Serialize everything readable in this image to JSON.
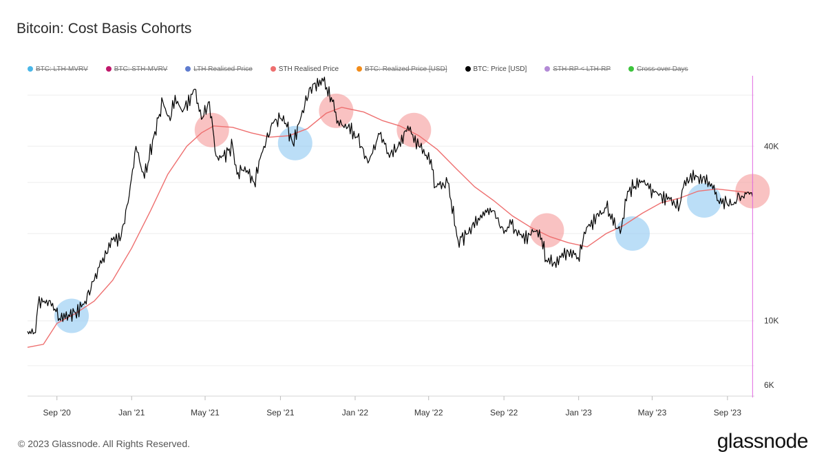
{
  "title": "Bitcoin: Cost Basis Cohorts",
  "legend": [
    {
      "label": "BTC: LTH-MVRV",
      "color": "#4ab7e8",
      "enabled": false
    },
    {
      "label": "BTC: STH-MVRV",
      "color": "#c0186b",
      "enabled": false
    },
    {
      "label": "LTH Realised Price",
      "color": "#5f7ccf",
      "enabled": false
    },
    {
      "label": "STH Realised Price",
      "color": "#ee6f6f",
      "enabled": true
    },
    {
      "label": "BTC: Realized Price [USD]",
      "color": "#f28c1a",
      "enabled": false
    },
    {
      "label": "BTC: Price [USD]",
      "color": "#000000",
      "enabled": true
    },
    {
      "label": "STH-RP < LTH-RP",
      "color": "#b38ad6",
      "enabled": false
    },
    {
      "label": "Cross-over Days",
      "color": "#3cc43c",
      "enabled": false
    }
  ],
  "footer": {
    "copyright": "© 2023 Glassnode. All Rights Reserved.",
    "brand": "glassnode"
  },
  "chart_data": {
    "type": "line",
    "y_scale": "log",
    "ylim": [
      5500,
      70000
    ],
    "xlim": [
      "2020-07-15",
      "2023-10-15"
    ],
    "x_ticks": [
      {
        "date": "2020-09-01",
        "label": "Sep '20"
      },
      {
        "date": "2021-01-01",
        "label": "Jan '21"
      },
      {
        "date": "2021-05-01",
        "label": "May '21"
      },
      {
        "date": "2021-09-01",
        "label": "Sep '21"
      },
      {
        "date": "2022-01-01",
        "label": "Jan '22"
      },
      {
        "date": "2022-05-01",
        "label": "May '22"
      },
      {
        "date": "2022-09-01",
        "label": "Sep '22"
      },
      {
        "date": "2023-01-01",
        "label": "Jan '23"
      },
      {
        "date": "2023-05-01",
        "label": "May '23"
      },
      {
        "date": "2023-09-01",
        "label": "Sep '23"
      }
    ],
    "y_ticks": [
      {
        "value": 6000,
        "label": "6K"
      },
      {
        "value": 10000,
        "label": "10K"
      },
      {
        "value": 40000,
        "label": "40K"
      }
    ],
    "grid": true,
    "colors": {
      "price": "#000000",
      "sth": "#ee6f6f",
      "cursor": "#e066e0",
      "pink_circle": "#f59a9a",
      "blue_circle": "#8ec8f2"
    },
    "series": [
      {
        "name": "BTC: Price [USD]",
        "key": "price",
        "points": [
          [
            "2020-07-15",
            9200
          ],
          [
            "2020-07-28",
            9100
          ],
          [
            "2020-08-01",
            11300
          ],
          [
            "2020-08-15",
            11800
          ],
          [
            "2020-08-25",
            11500
          ],
          [
            "2020-09-05",
            10200
          ],
          [
            "2020-09-20",
            10500
          ],
          [
            "2020-10-01",
            10700
          ],
          [
            "2020-10-15",
            11400
          ],
          [
            "2020-11-01",
            13800
          ],
          [
            "2020-11-15",
            16500
          ],
          [
            "2020-12-01",
            19000
          ],
          [
            "2020-12-15",
            19600
          ],
          [
            "2020-12-28",
            27000
          ],
          [
            "2021-01-08",
            40000
          ],
          [
            "2021-01-22",
            31000
          ],
          [
            "2021-02-08",
            45000
          ],
          [
            "2021-02-21",
            57000
          ],
          [
            "2021-03-05",
            49000
          ],
          [
            "2021-03-13",
            60000
          ],
          [
            "2021-03-25",
            52500
          ],
          [
            "2021-04-14",
            63000
          ],
          [
            "2021-04-25",
            49500
          ],
          [
            "2021-05-08",
            57000
          ],
          [
            "2021-05-19",
            37000
          ],
          [
            "2021-05-31",
            37000
          ],
          [
            "2021-06-15",
            40000
          ],
          [
            "2021-06-22",
            32000
          ],
          [
            "2021-07-05",
            34000
          ],
          [
            "2021-07-20",
            30000
          ],
          [
            "2021-08-05",
            40000
          ],
          [
            "2021-08-20",
            48000
          ],
          [
            "2021-09-06",
            51000
          ],
          [
            "2021-09-21",
            41000
          ],
          [
            "2021-10-05",
            51000
          ],
          [
            "2021-10-20",
            64000
          ],
          [
            "2021-11-10",
            67000
          ],
          [
            "2021-11-25",
            57000
          ],
          [
            "2021-12-04",
            49000
          ],
          [
            "2021-12-20",
            46500
          ],
          [
            "2022-01-05",
            43000
          ],
          [
            "2022-01-22",
            35000
          ],
          [
            "2022-02-10",
            44000
          ],
          [
            "2022-02-24",
            38000
          ],
          [
            "2022-03-10",
            39000
          ],
          [
            "2022-03-28",
            47000
          ],
          [
            "2022-04-15",
            40000
          ],
          [
            "2022-05-05",
            36000
          ],
          [
            "2022-05-12",
            29000
          ],
          [
            "2022-06-01",
            30000
          ],
          [
            "2022-06-18",
            19000
          ],
          [
            "2022-07-05",
            20000
          ],
          [
            "2022-07-29",
            23800
          ],
          [
            "2022-08-15",
            24000
          ],
          [
            "2022-09-01",
            20000
          ],
          [
            "2022-09-13",
            21500
          ],
          [
            "2022-10-01",
            19300
          ],
          [
            "2022-10-29",
            20600
          ],
          [
            "2022-11-09",
            16200
          ],
          [
            "2022-11-21",
            15800
          ],
          [
            "2022-12-15",
            17300
          ],
          [
            "2022-12-31",
            16550
          ],
          [
            "2023-01-14",
            21000
          ],
          [
            "2023-02-15",
            24500
          ],
          [
            "2023-03-10",
            20000
          ],
          [
            "2023-03-22",
            28000
          ],
          [
            "2023-04-14",
            30400
          ],
          [
            "2023-04-26",
            28500
          ],
          [
            "2023-05-10",
            27500
          ],
          [
            "2023-06-15",
            25000
          ],
          [
            "2023-06-23",
            30500
          ],
          [
            "2023-07-13",
            31400
          ],
          [
            "2023-08-10",
            29400
          ],
          [
            "2023-08-17",
            26000
          ],
          [
            "2023-09-11",
            25200
          ],
          [
            "2023-09-20",
            27200
          ],
          [
            "2023-09-28",
            26500
          ],
          [
            "2023-10-05",
            27800
          ],
          [
            "2023-10-12",
            26800
          ]
        ]
      },
      {
        "name": "STH Realised Price",
        "key": "sth",
        "points": [
          [
            "2020-07-15",
            8100
          ],
          [
            "2020-08-10",
            8300
          ],
          [
            "2020-09-01",
            9800
          ],
          [
            "2020-10-01",
            10600
          ],
          [
            "2020-11-01",
            11700
          ],
          [
            "2020-12-01",
            13800
          ],
          [
            "2021-01-01",
            17800
          ],
          [
            "2021-02-01",
            24000
          ],
          [
            "2021-03-01",
            32000
          ],
          [
            "2021-04-01",
            40000
          ],
          [
            "2021-04-25",
            44500
          ],
          [
            "2021-05-15",
            47000
          ],
          [
            "2021-06-15",
            46500
          ],
          [
            "2021-07-15",
            44500
          ],
          [
            "2021-08-15",
            43000
          ],
          [
            "2021-09-15",
            43500
          ],
          [
            "2021-10-15",
            46000
          ],
          [
            "2021-11-15",
            52000
          ],
          [
            "2021-12-10",
            54500
          ],
          [
            "2022-01-15",
            52500
          ],
          [
            "2022-02-15",
            49000
          ],
          [
            "2022-03-15",
            47000
          ],
          [
            "2022-04-15",
            43500
          ],
          [
            "2022-05-15",
            39000
          ],
          [
            "2022-06-15",
            33500
          ],
          [
            "2022-07-15",
            29000
          ],
          [
            "2022-08-15",
            26000
          ],
          [
            "2022-09-15",
            23000
          ],
          [
            "2022-10-15",
            21000
          ],
          [
            "2022-11-15",
            19500
          ],
          [
            "2022-12-15",
            18600
          ],
          [
            "2023-01-15",
            18000
          ],
          [
            "2023-02-15",
            20000
          ],
          [
            "2023-03-15",
            21300
          ],
          [
            "2023-04-15",
            23500
          ],
          [
            "2023-05-15",
            25500
          ],
          [
            "2023-06-15",
            26500
          ],
          [
            "2023-07-15",
            28000
          ],
          [
            "2023-08-15",
            28500
          ],
          [
            "2023-09-15",
            28000
          ],
          [
            "2023-10-12",
            27600
          ]
        ]
      }
    ],
    "highlight_circles": [
      {
        "date": "2020-09-25",
        "value": 10400,
        "type": "blue"
      },
      {
        "date": "2021-05-12",
        "value": 45500,
        "type": "pink"
      },
      {
        "date": "2021-09-25",
        "value": 41000,
        "type": "blue"
      },
      {
        "date": "2021-12-01",
        "value": 53000,
        "type": "pink"
      },
      {
        "date": "2022-04-07",
        "value": 45500,
        "type": "pink"
      },
      {
        "date": "2022-11-10",
        "value": 20500,
        "type": "pink"
      },
      {
        "date": "2023-03-30",
        "value": 20000,
        "type": "blue"
      },
      {
        "date": "2023-07-25",
        "value": 26000,
        "type": "blue"
      },
      {
        "date": "2023-10-12",
        "value": 28000,
        "type": "pink"
      }
    ],
    "cursor_date": "2023-10-12"
  }
}
